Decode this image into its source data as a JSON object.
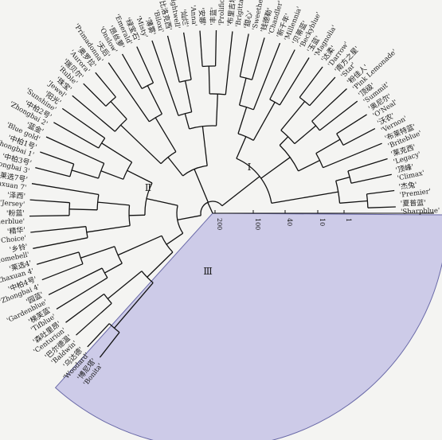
{
  "groups": [
    {
      "label": "Ⅰ"
    },
    {
      "label": "Ⅱ"
    },
    {
      "label": "Ⅲ"
    }
  ],
  "scale": {
    "ticks": [
      {
        "label": "200"
      },
      {
        "label": "100"
      },
      {
        "label": "40"
      },
      {
        "label": "10"
      },
      {
        "label": "1"
      }
    ]
  },
  "colors": {
    "highlight_fill": "#cdcbe8",
    "highlight_stroke": "#6a6aa8",
    "branch": "#111111",
    "background": "#f4f4f2"
  },
  "leaves": [
    {
      "zh": "'夏普蓝'",
      "en": "'Sharpblue'"
    },
    {
      "zh": "'杰兔'",
      "en": "'Premier'"
    },
    {
      "zh": "'顶峰'",
      "en": "'Climax'"
    },
    {
      "zh": "'莱克西'",
      "en": "'Legacy'"
    },
    {
      "zh": "'布莱特蓝'",
      "en": "'Briteblue'"
    },
    {
      "zh": "'沃农'",
      "en": "'Vernon'"
    },
    {
      "zh": "'奥尼尔'",
      "en": "'O'Neal'"
    },
    {
      "zh": "'顶级'",
      "en": "'Summit'"
    },
    {
      "zh": "'粉佳人'",
      "en": "'Pink Lemonade'"
    },
    {
      "zh": "'南方之星'",
      "en": "'Star'"
    },
    {
      "zh": "'达柔'",
      "en": "'Darrow'"
    },
    {
      "zh": "'玉蓝'",
      "en": "'Magnolia'"
    },
    {
      "zh": "'贝蒂蓝'",
      "en": "'Beckyblue'"
    },
    {
      "zh": "'新千年'",
      "en": "'Millennia'"
    },
    {
      "zh": "'钱德勒'",
      "en": "'Chandler'"
    },
    {
      "zh": "'甜心'",
      "en": "'Sweetheart'"
    },
    {
      "zh": "'布里吉塔'",
      "en": "'Brigitta'"
    },
    {
      "zh": "'丰蓝'",
      "en": "'Prolific'"
    },
    {
      "zh": "'安娜'",
      "en": "'Anna'"
    },
    {
      "zh": "'灿烂'",
      "en": "'Brightwell'"
    },
    {
      "zh": "'比洛克西'",
      "en": "'Biloxi'"
    },
    {
      "zh": "'薄雾'",
      "en": "'Misty'"
    },
    {
      "zh": "'绿宝石'",
      "en": "'Emerald'"
    },
    {
      "zh": "'昂丝萝'",
      "en": "'Onslow'"
    },
    {
      "zh": "'天后'",
      "en": "'Primadonna'"
    },
    {
      "zh": "'奥罗拉'",
      "en": "'Aurora'"
    },
    {
      "zh": "'瑞贝尔'",
      "en": "'Ruble'"
    },
    {
      "zh": "'珠宝'",
      "en": "'Jewel'"
    },
    {
      "zh": "'阳光'",
      "en": "'Sunshine'"
    },
    {
      "zh": "'中柏2号'",
      "en": "'Zhongbai 2'"
    },
    {
      "zh": "'蓝金'",
      "en": "'Blue gold'"
    },
    {
      "zh": "'中柏1号'",
      "en": "'Zhongbai 1'"
    },
    {
      "zh": "'中柏3号'",
      "en": "'Zhongbai 3'"
    },
    {
      "zh": "'莱选7号'",
      "en": "'Zhaxuan 7'"
    },
    {
      "zh": "'泽西'",
      "en": "'Jersey'"
    },
    {
      "zh": "'粉蓝'",
      "en": "'Powderblue'"
    },
    {
      "zh": "'精华'",
      "en": "'Choice'"
    },
    {
      "zh": "'乡铃'",
      "en": "'Homebell'"
    },
    {
      "zh": "'莱选4'",
      "en": "'Zhaxuan 4'"
    },
    {
      "zh": "'中柏4号'",
      "en": "'Zhongbai 4'"
    },
    {
      "zh": "'园蓝'",
      "en": "'Gardenblue'"
    },
    {
      "zh": "'梯芙蓝'",
      "en": "'Tifblue'"
    },
    {
      "zh": "'森吐里昂'",
      "en": "'Centurion'"
    },
    {
      "zh": "'巴尔德温'",
      "en": "'Baldwin'"
    },
    {
      "zh": "'乌达德'",
      "en": "'Woodard'"
    },
    {
      "zh": "'博尼塔'",
      "en": "'Bonita'"
    }
  ]
}
